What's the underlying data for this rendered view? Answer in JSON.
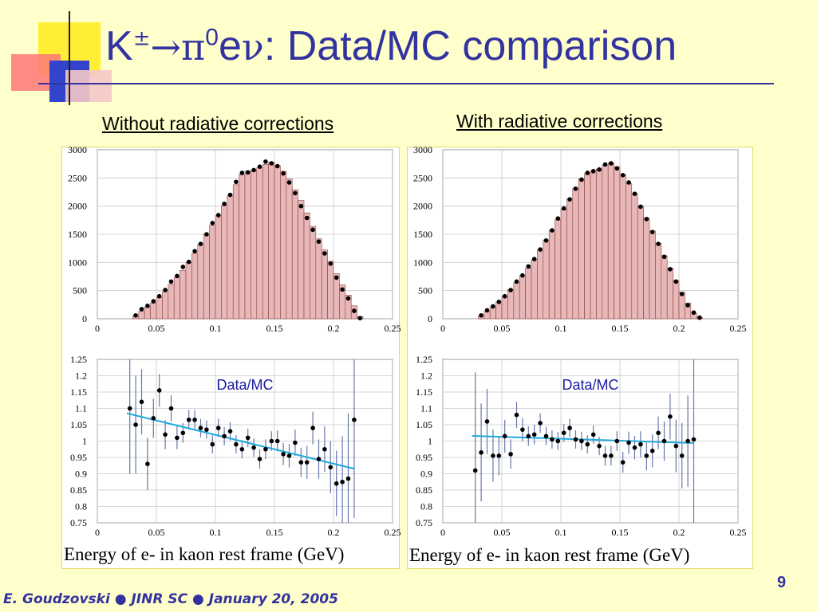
{
  "slide": {
    "title_k": "K",
    "title_pm": "±",
    "title_arrow": "→",
    "title_pi": "π",
    "title_pi_sup": "0",
    "title_e": "e",
    "title_nu": "ν",
    "title_rest": ": Data/MC comparison",
    "subtitle_left": "Without radiative corrections",
    "subtitle_right": "With radiative corrections",
    "footer": "E. Goudzovski ● JINR SC ● January 20, 2005",
    "page_number": "9"
  },
  "colors": {
    "title": "#3333a0",
    "hist_fill": "#e8b8b8",
    "hist_edge": "#8a4040",
    "fit_line": "#22aadd",
    "error_bar": "#6677aa"
  },
  "chart_data": [
    {
      "id": "hist-left",
      "type": "bar",
      "xlim": [
        0,
        0.25
      ],
      "ylim": [
        0,
        3000
      ],
      "x_ticks": [
        "0",
        "0.05",
        "0.1",
        "0.15",
        "0.2",
        "0.25"
      ],
      "y_ticks": [
        "0",
        "500",
        "1000",
        "1500",
        "2000",
        "2500",
        "3000"
      ],
      "bin_width": 0.005,
      "bin_start": 0.025,
      "mc_values": [
        0,
        50,
        130,
        210,
        280,
        380,
        480,
        610,
        730,
        860,
        1000,
        1160,
        1320,
        1490,
        1660,
        1830,
        2010,
        2190,
        2380,
        2560,
        2620,
        2640,
        2680,
        2740,
        2780,
        2720,
        2620,
        2480,
        2290,
        2100,
        1880,
        1640,
        1420,
        1220,
        1020,
        800,
        600,
        420,
        230,
        40,
        0
      ],
      "data_values": [
        0,
        60,
        170,
        230,
        310,
        400,
        510,
        660,
        760,
        920,
        1010,
        1200,
        1330,
        1500,
        1700,
        1840,
        2040,
        2200,
        2430,
        2590,
        2600,
        2640,
        2700,
        2790,
        2760,
        2710,
        2580,
        2420,
        2230,
        2000,
        1790,
        1580,
        1370,
        1160,
        980,
        730,
        520,
        360,
        140,
        10,
        0
      ],
      "xlabel": "Energy of e- in kaon rest frame (GeV)"
    },
    {
      "id": "ratio-left",
      "type": "scatter",
      "label": "Data/MC",
      "xlim": [
        0,
        0.25
      ],
      "ylim": [
        0.75,
        1.25
      ],
      "x_ticks": [
        "0",
        "0.05",
        "0.1",
        "0.15",
        "0.2",
        "0.25"
      ],
      "y_ticks": [
        "0.75",
        "0.8",
        "0.85",
        "0.9",
        "0.95",
        "1",
        "1.05",
        "1.1",
        "1.15",
        "1.2",
        "1.25"
      ],
      "x": [
        0.0275,
        0.0325,
        0.0375,
        0.0425,
        0.0475,
        0.0525,
        0.0575,
        0.0625,
        0.0675,
        0.0725,
        0.0775,
        0.0825,
        0.0875,
        0.0925,
        0.0975,
        0.1025,
        0.1075,
        0.1125,
        0.1175,
        0.1225,
        0.1275,
        0.1325,
        0.1375,
        0.1425,
        0.1475,
        0.1525,
        0.1575,
        0.1625,
        0.1675,
        0.1725,
        0.1775,
        0.1825,
        0.1875,
        0.1925,
        0.1975,
        0.2025,
        0.2075,
        0.2125,
        0.2175
      ],
      "y": [
        1.1,
        1.05,
        1.12,
        0.93,
        1.07,
        1.155,
        1.02,
        1.1,
        1.01,
        1.025,
        1.065,
        1.065,
        1.04,
        1.035,
        0.99,
        1.04,
        1.015,
        1.03,
        0.99,
        0.975,
        1.01,
        0.98,
        0.945,
        0.975,
        1.0,
        1.0,
        0.96,
        0.955,
        0.995,
        0.935,
        0.935,
        1.04,
        0.945,
        0.975,
        0.92,
        0.87,
        0.875,
        0.885,
        1.065
      ],
      "err": [
        0.2,
        0.15,
        0.1,
        0.08,
        0.06,
        0.05,
        0.045,
        0.04,
        0.035,
        0.03,
        0.03,
        0.03,
        0.028,
        0.028,
        0.028,
        0.028,
        0.028,
        0.028,
        0.028,
        0.028,
        0.028,
        0.028,
        0.03,
        0.03,
        0.03,
        0.032,
        0.034,
        0.036,
        0.04,
        0.045,
        0.05,
        0.05,
        0.06,
        0.07,
        0.08,
        0.1,
        0.14,
        0.2,
        0.3
      ],
      "fit": {
        "x0": 0.025,
        "y0": 1.085,
        "x1": 0.218,
        "y1": 0.915
      },
      "xlabel": "Energy of e- in kaon rest frame (GeV)"
    },
    {
      "id": "hist-right",
      "type": "bar",
      "xlim": [
        0,
        0.25
      ],
      "ylim": [
        0,
        3000
      ],
      "x_ticks": [
        "0",
        "0.05",
        "0.1",
        "0.15",
        "0.2",
        "0.25"
      ],
      "y_ticks": [
        "0",
        "500",
        "1000",
        "1500",
        "2000",
        "2500",
        "3000"
      ],
      "bin_width": 0.005,
      "bin_start": 0.025,
      "mc_values": [
        0,
        50,
        130,
        210,
        300,
        400,
        520,
        640,
        770,
        900,
        1050,
        1220,
        1400,
        1570,
        1760,
        1950,
        2130,
        2320,
        2480,
        2580,
        2630,
        2660,
        2730,
        2770,
        2700,
        2560,
        2400,
        2220,
        2000,
        1790,
        1560,
        1340,
        1120,
        900,
        680,
        470,
        280,
        100,
        20,
        0,
        0
      ],
      "data_values": [
        0,
        60,
        150,
        220,
        300,
        400,
        510,
        660,
        770,
        930,
        1060,
        1230,
        1390,
        1570,
        1780,
        1960,
        2120,
        2310,
        2470,
        2590,
        2620,
        2650,
        2740,
        2760,
        2670,
        2550,
        2420,
        2220,
        1990,
        1770,
        1540,
        1330,
        1100,
        880,
        660,
        440,
        240,
        110,
        20,
        0,
        0
      ],
      "xlabel": "Energy of e- in kaon rest frame (GeV)"
    },
    {
      "id": "ratio-right",
      "type": "scatter",
      "label": "Data/MC",
      "xlim": [
        0,
        0.25
      ],
      "ylim": [
        0.75,
        1.25
      ],
      "x_ticks": [
        "0",
        "0.05",
        "0.1",
        "0.15",
        "0.2",
        "0.25"
      ],
      "y_ticks": [
        "0.75",
        "0.8",
        "0.85",
        "0.9",
        "0.95",
        "1",
        "1.05",
        "1.1",
        "1.15",
        "1.2",
        "1.25"
      ],
      "x": [
        0.0275,
        0.0325,
        0.0375,
        0.0425,
        0.0475,
        0.0525,
        0.0575,
        0.0625,
        0.0675,
        0.0725,
        0.0775,
        0.0825,
        0.0875,
        0.0925,
        0.0975,
        0.1025,
        0.1075,
        0.1125,
        0.1175,
        0.1225,
        0.1275,
        0.1325,
        0.1375,
        0.1425,
        0.1475,
        0.1525,
        0.1575,
        0.1625,
        0.1675,
        0.1725,
        0.1775,
        0.1825,
        0.1875,
        0.1925,
        0.1975,
        0.2025,
        0.2075,
        0.2125
      ],
      "y": [
        0.91,
        0.965,
        1.06,
        0.955,
        0.955,
        1.015,
        0.96,
        1.08,
        1.035,
        1.015,
        1.02,
        1.055,
        1.015,
        1.005,
        1.0,
        1.025,
        1.04,
        1.005,
        1.0,
        0.99,
        1.02,
        0.985,
        0.955,
        0.955,
        1.0,
        0.935,
        0.995,
        0.98,
        0.99,
        0.955,
        0.97,
        1.025,
        1.0,
        1.075,
        0.985,
        0.955,
        1.0,
        1.005
      ],
      "err": [
        0.3,
        0.15,
        0.1,
        0.08,
        0.06,
        0.05,
        0.045,
        0.04,
        0.035,
        0.03,
        0.03,
        0.03,
        0.028,
        0.028,
        0.028,
        0.028,
        0.028,
        0.028,
        0.028,
        0.028,
        0.028,
        0.028,
        0.03,
        0.03,
        0.03,
        0.032,
        0.034,
        0.036,
        0.04,
        0.045,
        0.05,
        0.05,
        0.06,
        0.07,
        0.08,
        0.1,
        0.14,
        0.3
      ],
      "fit": {
        "x0": 0.025,
        "y0": 1.016,
        "x1": 0.212,
        "y1": 0.994
      },
      "xlabel": "Energy of e- in kaon rest frame (GeV)"
    }
  ]
}
